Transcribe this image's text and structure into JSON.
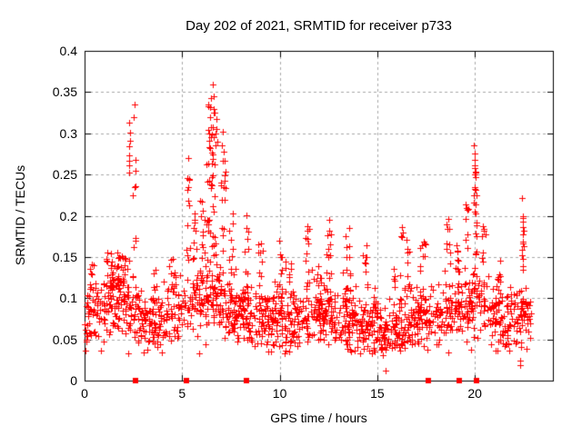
{
  "window": {
    "background": "#ffffff",
    "text_color": "#000000"
  },
  "chart_data": {
    "type": "scatter",
    "title": "Day 202 of 2021, SRMTID for receiver p733",
    "xlabel": "GPS time / hours",
    "ylabel": "SRMTID / TECUs",
    "xlim": [
      0,
      24
    ],
    "ylim": [
      0,
      0.4
    ],
    "xticks": {
      "values": [
        0,
        5,
        10,
        15,
        20
      ],
      "labels": [
        "0",
        "5",
        "10",
        "15",
        "20"
      ]
    },
    "yticks": {
      "values": [
        0,
        0.05,
        0.1,
        0.15,
        0.2,
        0.25,
        0.3,
        0.35,
        0.4
      ],
      "labels": [
        "0",
        "0.05",
        "0.1",
        "0.15",
        "0.2",
        "0.25",
        "0.3",
        "0.35",
        "0.4"
      ]
    },
    "grid": {
      "show": true,
      "color": "#a8a8a8",
      "dash": [
        3,
        3
      ]
    },
    "border_color": "#000000",
    "tick_length": 6,
    "legend": "none",
    "marker": {
      "shape": "plus",
      "color": "#ff0000",
      "size": 7
    },
    "axis_flags": {
      "shape": "filled-square",
      "color": "#ff0000",
      "size": 6,
      "y": 0,
      "x_hours": [
        2.6,
        5.2,
        8.3,
        17.6,
        19.2,
        20.1
      ]
    },
    "notable_points": [
      [
        2.3,
        0.313
      ],
      [
        2.33,
        0.301
      ],
      [
        2.52,
        0.32
      ],
      [
        2.55,
        0.335
      ],
      [
        2.6,
        0.268
      ],
      [
        2.48,
        0.225
      ],
      [
        5.3,
        0.27
      ],
      [
        5.35,
        0.245
      ],
      [
        6.4,
        0.3
      ],
      [
        6.45,
        0.332
      ],
      [
        6.5,
        0.295
      ],
      [
        6.55,
        0.359
      ],
      [
        6.6,
        0.345
      ],
      [
        6.68,
        0.325
      ],
      [
        6.75,
        0.305
      ],
      [
        6.8,
        0.29
      ],
      [
        7.05,
        0.285
      ],
      [
        7.1,
        0.302
      ],
      [
        19.95,
        0.285
      ],
      [
        20.0,
        0.275
      ],
      [
        20.0,
        0.268
      ],
      [
        19.98,
        0.261
      ],
      [
        20.03,
        0.252
      ],
      [
        20.05,
        0.247
      ],
      [
        20.0,
        0.232
      ],
      [
        20.08,
        0.225
      ],
      [
        22.42,
        0.222
      ],
      [
        22.45,
        0.199
      ],
      [
        22.47,
        0.193
      ],
      [
        22.44,
        0.186
      ],
      [
        22.46,
        0.177
      ],
      [
        22.5,
        0.163
      ],
      [
        22.48,
        0.148
      ],
      [
        15.44,
        0.012
      ],
      [
        15.3,
        0.031
      ],
      [
        22.3,
        0.024
      ],
      [
        22.33,
        0.019
      ],
      [
        3.05,
        0.034
      ],
      [
        0.1,
        0.05
      ]
    ],
    "distribution": {
      "seed": 7,
      "n_base": 1500,
      "x_max": 22.9,
      "y_min": 0.033,
      "sigma": 0.02,
      "envelope": [
        [
          0,
          0.078
        ],
        [
          0.5,
          0.082
        ],
        [
          1,
          0.092
        ],
        [
          1.5,
          0.1
        ],
        [
          2,
          0.098
        ],
        [
          2.5,
          0.085
        ],
        [
          3,
          0.07
        ],
        [
          3.5,
          0.068
        ],
        [
          4,
          0.076
        ],
        [
          4.5,
          0.08
        ],
        [
          5,
          0.09
        ],
        [
          5.5,
          0.095
        ],
        [
          6,
          0.1
        ],
        [
          6.5,
          0.112
        ],
        [
          7,
          0.1
        ],
        [
          7.5,
          0.088
        ],
        [
          8,
          0.08
        ],
        [
          8.5,
          0.076
        ],
        [
          9,
          0.074
        ],
        [
          9.5,
          0.07
        ],
        [
          10,
          0.074
        ],
        [
          10.5,
          0.07
        ],
        [
          11,
          0.074
        ],
        [
          11.5,
          0.08
        ],
        [
          12,
          0.075
        ],
        [
          12.5,
          0.08
        ],
        [
          13,
          0.074
        ],
        [
          13.5,
          0.076
        ],
        [
          14,
          0.07
        ],
        [
          14.5,
          0.065
        ],
        [
          15,
          0.06
        ],
        [
          15.5,
          0.054
        ],
        [
          16,
          0.064
        ],
        [
          16.5,
          0.075
        ],
        [
          17,
          0.08
        ],
        [
          17.5,
          0.076
        ],
        [
          18,
          0.07
        ],
        [
          18.5,
          0.08
        ],
        [
          19,
          0.085
        ],
        [
          19.5,
          0.09
        ],
        [
          20,
          0.1
        ],
        [
          20.5,
          0.09
        ],
        [
          21,
          0.08
        ],
        [
          21.5,
          0.074
        ],
        [
          22,
          0.08
        ],
        [
          22.5,
          0.085
        ],
        [
          22.9,
          0.072
        ]
      ],
      "bursts": [
        [
          0.35,
          0.25,
          0.148,
          8
        ],
        [
          1.4,
          0.6,
          0.158,
          22
        ],
        [
          1.9,
          0.4,
          0.152,
          14
        ],
        [
          2.3,
          0.12,
          0.3,
          7
        ],
        [
          2.55,
          0.15,
          0.32,
          7
        ],
        [
          3.6,
          0.2,
          0.15,
          6
        ],
        [
          4.5,
          0.3,
          0.155,
          8
        ],
        [
          5.3,
          0.25,
          0.262,
          12
        ],
        [
          5.65,
          0.2,
          0.21,
          9
        ],
        [
          6.05,
          0.3,
          0.225,
          14
        ],
        [
          6.5,
          0.5,
          0.345,
          50
        ],
        [
          7.1,
          0.25,
          0.295,
          16
        ],
        [
          7.5,
          0.25,
          0.205,
          10
        ],
        [
          8.3,
          0.2,
          0.212,
          12
        ],
        [
          9.0,
          0.25,
          0.175,
          10
        ],
        [
          10.0,
          0.2,
          0.178,
          9
        ],
        [
          10.45,
          0.3,
          0.152,
          9
        ],
        [
          11.4,
          0.2,
          0.198,
          11
        ],
        [
          12.0,
          0.3,
          0.155,
          8
        ],
        [
          12.5,
          0.25,
          0.2,
          13
        ],
        [
          13.5,
          0.25,
          0.188,
          11
        ],
        [
          14.4,
          0.25,
          0.172,
          8
        ],
        [
          15.9,
          0.15,
          0.152,
          6
        ],
        [
          16.2,
          0.2,
          0.188,
          9
        ],
        [
          16.6,
          0.2,
          0.176,
          8
        ],
        [
          17.3,
          0.35,
          0.17,
          12
        ],
        [
          18.6,
          0.3,
          0.202,
          12
        ],
        [
          19.1,
          0.2,
          0.165,
          8
        ],
        [
          19.6,
          0.25,
          0.215,
          10
        ],
        [
          20.0,
          0.2,
          0.278,
          20
        ],
        [
          20.45,
          0.2,
          0.19,
          9
        ],
        [
          21.3,
          0.3,
          0.15,
          7
        ],
        [
          22.45,
          0.1,
          0.2,
          9
        ]
      ]
    }
  }
}
